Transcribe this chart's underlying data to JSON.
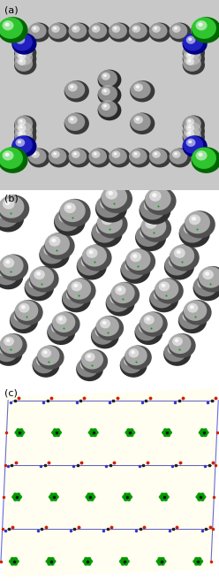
{
  "figure_width": 2.48,
  "figure_height": 6.57,
  "dpi": 100,
  "bg_color": "#ffffff",
  "panels": [
    "(a)",
    "(b)",
    "(c)"
  ],
  "label_fontsize": 8,
  "panel_a_bg": "#c8c8c8",
  "panel_b_bg": "#ffffff",
  "panel_c_bg": "#fffff8",
  "sphere_dark": "#404040",
  "sphere_mid": "#787878",
  "sphere_light": "#d0d0d0",
  "sphere_highlight": "#f0f0f0",
  "blue_dark": "#000080",
  "blue_mid": "#2020cc",
  "blue_light": "#6060ff",
  "green_dark": "#007700",
  "green_mid": "#00bb00",
  "green_light": "#88ff88"
}
